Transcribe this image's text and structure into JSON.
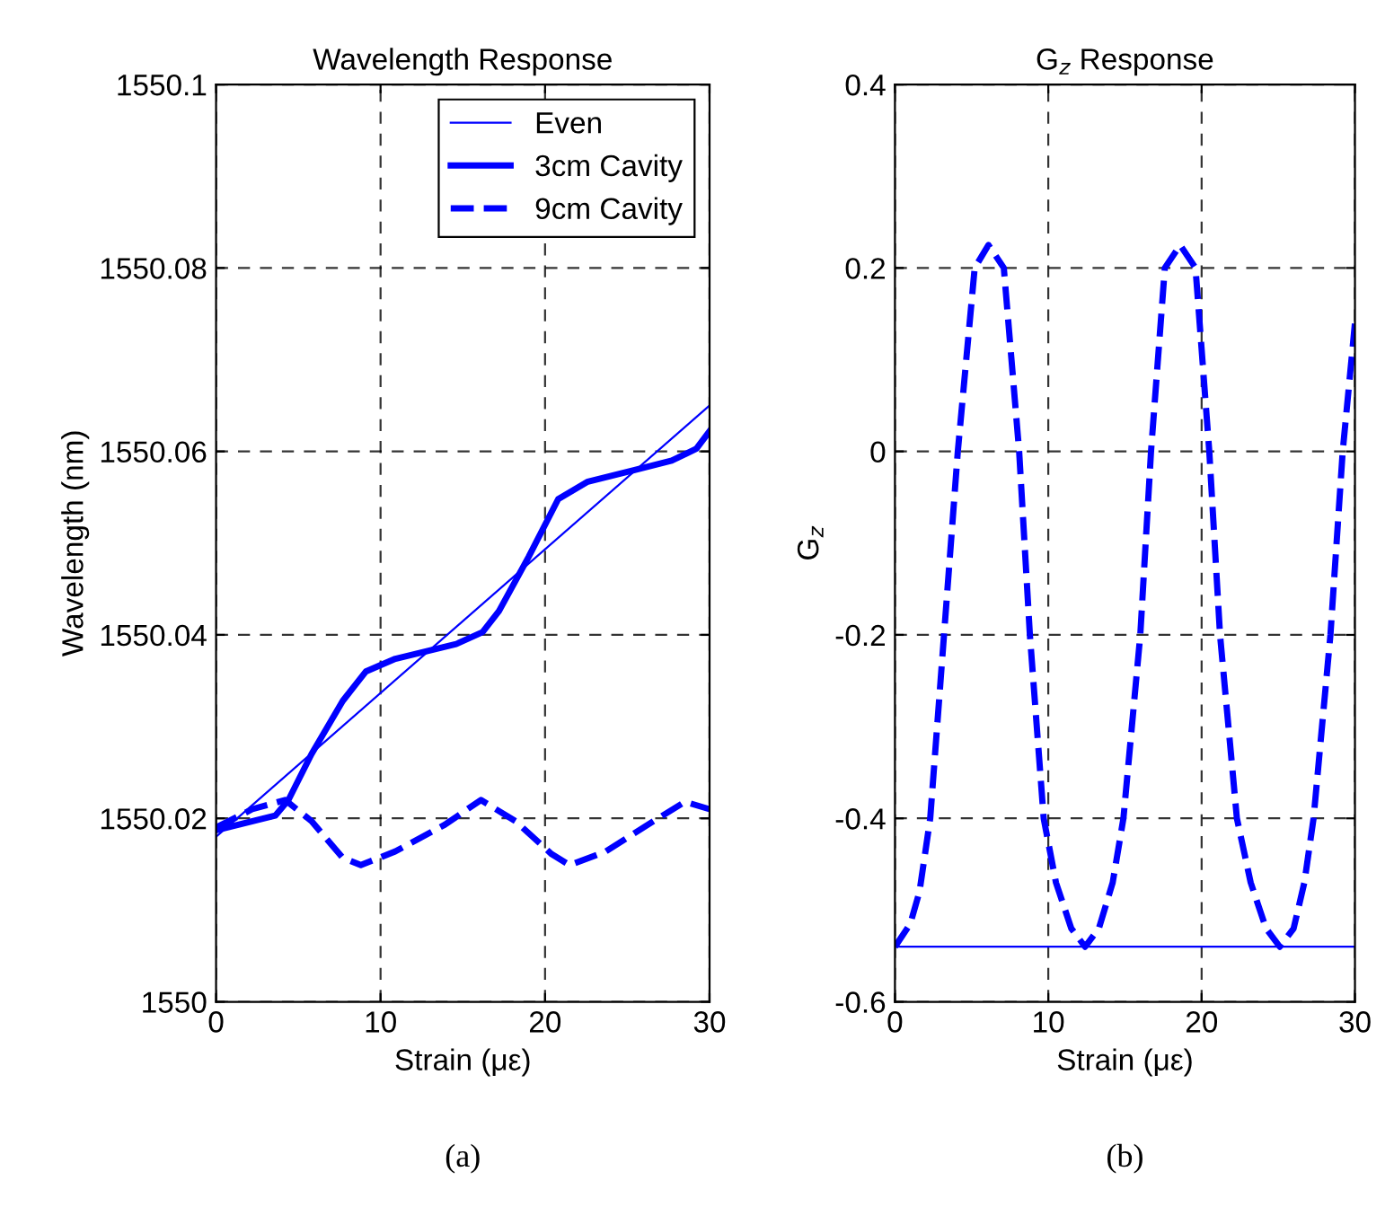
{
  "chart_data": [
    {
      "type": "line",
      "title": "Wavelength Response",
      "xlabel": "Strain (με)",
      "ylabel": "Wavelength (nm)",
      "xlim": [
        0,
        30
      ],
      "xticks": [
        0,
        10,
        20,
        30
      ],
      "ylim": [
        1550,
        1550.1
      ],
      "yticks": [
        1550,
        1550.02,
        1550.04,
        1550.06,
        1550.08,
        1550.1
      ],
      "grid": true,
      "legend": "top right",
      "annotations": [
        "(a)"
      ],
      "series": [
        {
          "name": "Even",
          "color": "#0000ff",
          "line_style": "solid",
          "x": [
            0,
            30
          ],
          "values": [
            1550.018,
            1550.065
          ]
        },
        {
          "name": "3cm Cavity",
          "color": "#0000ff",
          "line_style": "solid",
          "x": [
            0,
            3.6,
            4.4,
            5.8,
            7.7,
            9.1,
            10.9,
            14.6,
            16.2,
            17.2,
            19.0,
            20.8,
            22.6,
            25.5,
            27.7,
            29.2,
            30
          ],
          "values": [
            1550.0187,
            1550.0203,
            1550.022,
            1550.027,
            1550.0328,
            1550.036,
            1550.0374,
            1550.039,
            1550.0403,
            1550.0426,
            1550.0485,
            1550.0548,
            1550.0567,
            1550.058,
            1550.059,
            1550.0603,
            1550.0622
          ]
        },
        {
          "name": "9cm Cavity",
          "color": "#0000ff",
          "line_style": "dashed",
          "x": [
            0,
            2.2,
            4.2,
            5.8,
            7.7,
            8.8,
            10.9,
            13.9,
            16.1,
            18.2,
            20.4,
            21.5,
            23.7,
            26.6,
            28.5,
            30
          ],
          "values": [
            1550.019,
            1550.021,
            1550.022,
            1550.0197,
            1550.0157,
            1550.0149,
            1550.0164,
            1550.0193,
            1550.022,
            1550.0197,
            1550.0161,
            1550.0149,
            1550.0164,
            1550.0197,
            1550.0218,
            1550.021
          ]
        }
      ]
    },
    {
      "type": "line",
      "title": "G$_{z}$ Response",
      "xlabel": "Strain (με)",
      "ylabel": "G$_{z}$",
      "xlim": [
        0,
        30
      ],
      "xticks": [
        0,
        10,
        20,
        30
      ],
      "ylim": [
        -0.6,
        0.4
      ],
      "yticks": [
        -0.6,
        -0.4,
        -0.2,
        0,
        0.2,
        0.4
      ],
      "grid": true,
      "annotations": [
        "(b)"
      ],
      "series": [
        {
          "color": "#0000ff",
          "line_style": "dashed",
          "x": [
            0,
            1,
            1.6,
            2.3,
            3.2,
            4.1,
            5.2,
            6.1,
            7.1,
            8.1,
            8.8,
            9.7,
            10.5,
            11.5,
            12.4,
            13.3,
            14.2,
            14.9,
            16.0,
            16.7,
            17.6,
            18.6,
            19.6,
            20.5,
            21.2,
            22.3,
            23.2,
            24.2,
            25.1,
            26.0,
            26.7,
            27.3,
            28.4,
            29.2,
            30
          ],
          "values": [
            -0.54,
            -0.515,
            -0.48,
            -0.4,
            -0.2,
            0,
            0.2,
            0.225,
            0.2,
            0,
            -0.2,
            -0.4,
            -0.47,
            -0.52,
            -0.54,
            -0.52,
            -0.47,
            -0.4,
            -0.2,
            0,
            0.2,
            0.225,
            0.2,
            0,
            -0.2,
            -0.4,
            -0.47,
            -0.52,
            -0.54,
            -0.52,
            -0.47,
            -0.4,
            -0.2,
            0,
            0.14
          ]
        },
        {
          "color": "#0000ff",
          "line_style": "solid",
          "x": [
            0,
            30
          ],
          "values": [
            -0.54,
            -0.54
          ]
        }
      ]
    }
  ]
}
